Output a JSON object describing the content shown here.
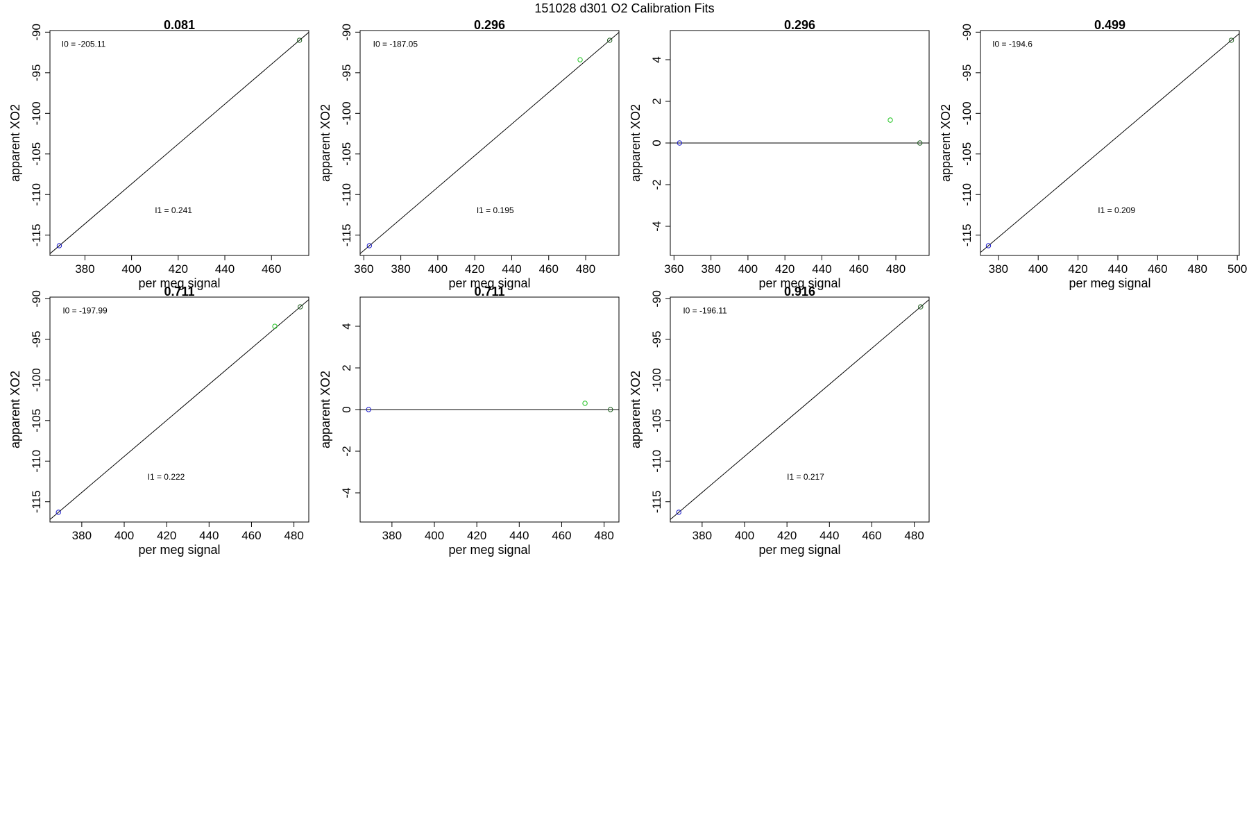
{
  "page_title": "151028   d301   O2 Calibration Fits",
  "colors": {
    "blue_point": "#1a1acc",
    "green_point": "#22c422",
    "dark_point": "#1f5f1f",
    "frame": "#000000",
    "fit_line": "#000000"
  },
  "chart_data": [
    {
      "type": "scatter",
      "title": "0.081",
      "xlabel": "per meg signal",
      "ylabel": "apparent XO2",
      "xlim": [
        365,
        476
      ],
      "ylim": [
        -117.5,
        -89.8
      ],
      "xticks": [
        380,
        400,
        420,
        440,
        460
      ],
      "yticks": [
        -90,
        -95,
        -100,
        -105,
        -110,
        -115
      ],
      "points": [
        {
          "x": 369,
          "y": -116.3,
          "color": "blue"
        },
        {
          "x": 472,
          "y": -91.0,
          "color": "dark"
        }
      ],
      "fit_line": {
        "intercept": -205.11,
        "slope": 0.241
      },
      "annotations": [
        {
          "text": "I0 =  -205.11",
          "x": 370,
          "y": -91.8
        },
        {
          "text": "I1 =  0.241",
          "x": 410,
          "y": -112.3
        }
      ]
    },
    {
      "type": "scatter",
      "title": "0.296",
      "xlabel": "per meg signal",
      "ylabel": "apparent XO2",
      "xlim": [
        358,
        498
      ],
      "ylim": [
        -117.5,
        -89.8
      ],
      "xticks": [
        360,
        380,
        400,
        420,
        440,
        460,
        480
      ],
      "yticks": [
        -90,
        -95,
        -100,
        -105,
        -110,
        -115
      ],
      "points": [
        {
          "x": 363,
          "y": -116.3,
          "color": "blue"
        },
        {
          "x": 477,
          "y": -93.4,
          "color": "green"
        },
        {
          "x": 493,
          "y": -91.0,
          "color": "dark"
        }
      ],
      "fit_line": {
        "intercept": -187.05,
        "slope": 0.195
      },
      "annotations": [
        {
          "text": "I0 =  -187.05",
          "x": 365,
          "y": -91.8
        },
        {
          "text": "I1 =  0.195",
          "x": 421,
          "y": -112.3
        }
      ]
    },
    {
      "type": "scatter",
      "title": "0.296",
      "xlabel": "per meg signal",
      "ylabel": "apparent XO2",
      "xlim": [
        358,
        498
      ],
      "ylim": [
        -5.4,
        5.4
      ],
      "xticks": [
        360,
        380,
        400,
        420,
        440,
        460,
        480
      ],
      "yticks": [
        4,
        2,
        0,
        -2,
        -4
      ],
      "points": [
        {
          "x": 363,
          "y": 0.0,
          "color": "blue"
        },
        {
          "x": 477,
          "y": 1.1,
          "color": "green"
        },
        {
          "x": 493,
          "y": 0.0,
          "color": "dark"
        }
      ],
      "hline": 0,
      "annotations": []
    },
    {
      "type": "scatter",
      "title": "0.499",
      "xlabel": "per meg signal",
      "ylabel": "apparent XO2",
      "xlim": [
        371,
        501
      ],
      "ylim": [
        -117.5,
        -89.8
      ],
      "xticks": [
        380,
        400,
        420,
        440,
        460,
        480,
        500
      ],
      "yticks": [
        -90,
        -95,
        -100,
        -105,
        -110,
        -115
      ],
      "points": [
        {
          "x": 375,
          "y": -116.3,
          "color": "blue"
        },
        {
          "x": 497,
          "y": -91.0,
          "color": "dark"
        }
      ],
      "fit_line": {
        "intercept": -194.6,
        "slope": 0.209
      },
      "annotations": [
        {
          "text": "I0 =  -194.6",
          "x": 377,
          "y": -91.8
        },
        {
          "text": "I1 =  0.209",
          "x": 430,
          "y": -112.3
        }
      ]
    },
    {
      "type": "scatter",
      "title": "0.711",
      "xlabel": "per meg signal",
      "ylabel": "apparent XO2",
      "xlim": [
        365,
        487
      ],
      "ylim": [
        -117.5,
        -89.8
      ],
      "xticks": [
        380,
        400,
        420,
        440,
        460,
        480
      ],
      "yticks": [
        -90,
        -95,
        -100,
        -105,
        -110,
        -115
      ],
      "points": [
        {
          "x": 369,
          "y": -116.3,
          "color": "blue"
        },
        {
          "x": 471,
          "y": -93.4,
          "color": "green"
        },
        {
          "x": 483,
          "y": -91.0,
          "color": "dark"
        }
      ],
      "fit_line": {
        "intercept": -197.99,
        "slope": 0.222
      },
      "annotations": [
        {
          "text": "I0 =  -197.99",
          "x": 371,
          "y": -91.8
        },
        {
          "text": "I1 =  0.222",
          "x": 411,
          "y": -112.3
        }
      ]
    },
    {
      "type": "scatter",
      "title": "0.711",
      "xlabel": "per meg signal",
      "ylabel": "apparent XO2",
      "xlim": [
        365,
        487
      ],
      "ylim": [
        -5.4,
        5.4
      ],
      "xticks": [
        380,
        400,
        420,
        440,
        460,
        480
      ],
      "yticks": [
        4,
        2,
        0,
        -2,
        -4
      ],
      "points": [
        {
          "x": 369,
          "y": 0.0,
          "color": "blue"
        },
        {
          "x": 471,
          "y": 0.3,
          "color": "green"
        },
        {
          "x": 483,
          "y": 0.0,
          "color": "dark"
        }
      ],
      "hline": 0,
      "annotations": []
    },
    {
      "type": "scatter",
      "title": "0.916",
      "xlabel": "per meg signal",
      "ylabel": "apparent XO2",
      "xlim": [
        365,
        487
      ],
      "ylim": [
        -117.5,
        -89.8
      ],
      "xticks": [
        380,
        400,
        420,
        440,
        460,
        480
      ],
      "yticks": [
        -90,
        -95,
        -100,
        -105,
        -110,
        -115
      ],
      "points": [
        {
          "x": 369,
          "y": -116.3,
          "color": "blue"
        },
        {
          "x": 483,
          "y": -91.0,
          "color": "dark"
        }
      ],
      "fit_line": {
        "intercept": -196.11,
        "slope": 0.217
      },
      "annotations": [
        {
          "text": "I0 =  -196.11",
          "x": 371,
          "y": -91.8
        },
        {
          "text": "I1 =  0.217",
          "x": 420,
          "y": -112.3
        }
      ]
    }
  ]
}
